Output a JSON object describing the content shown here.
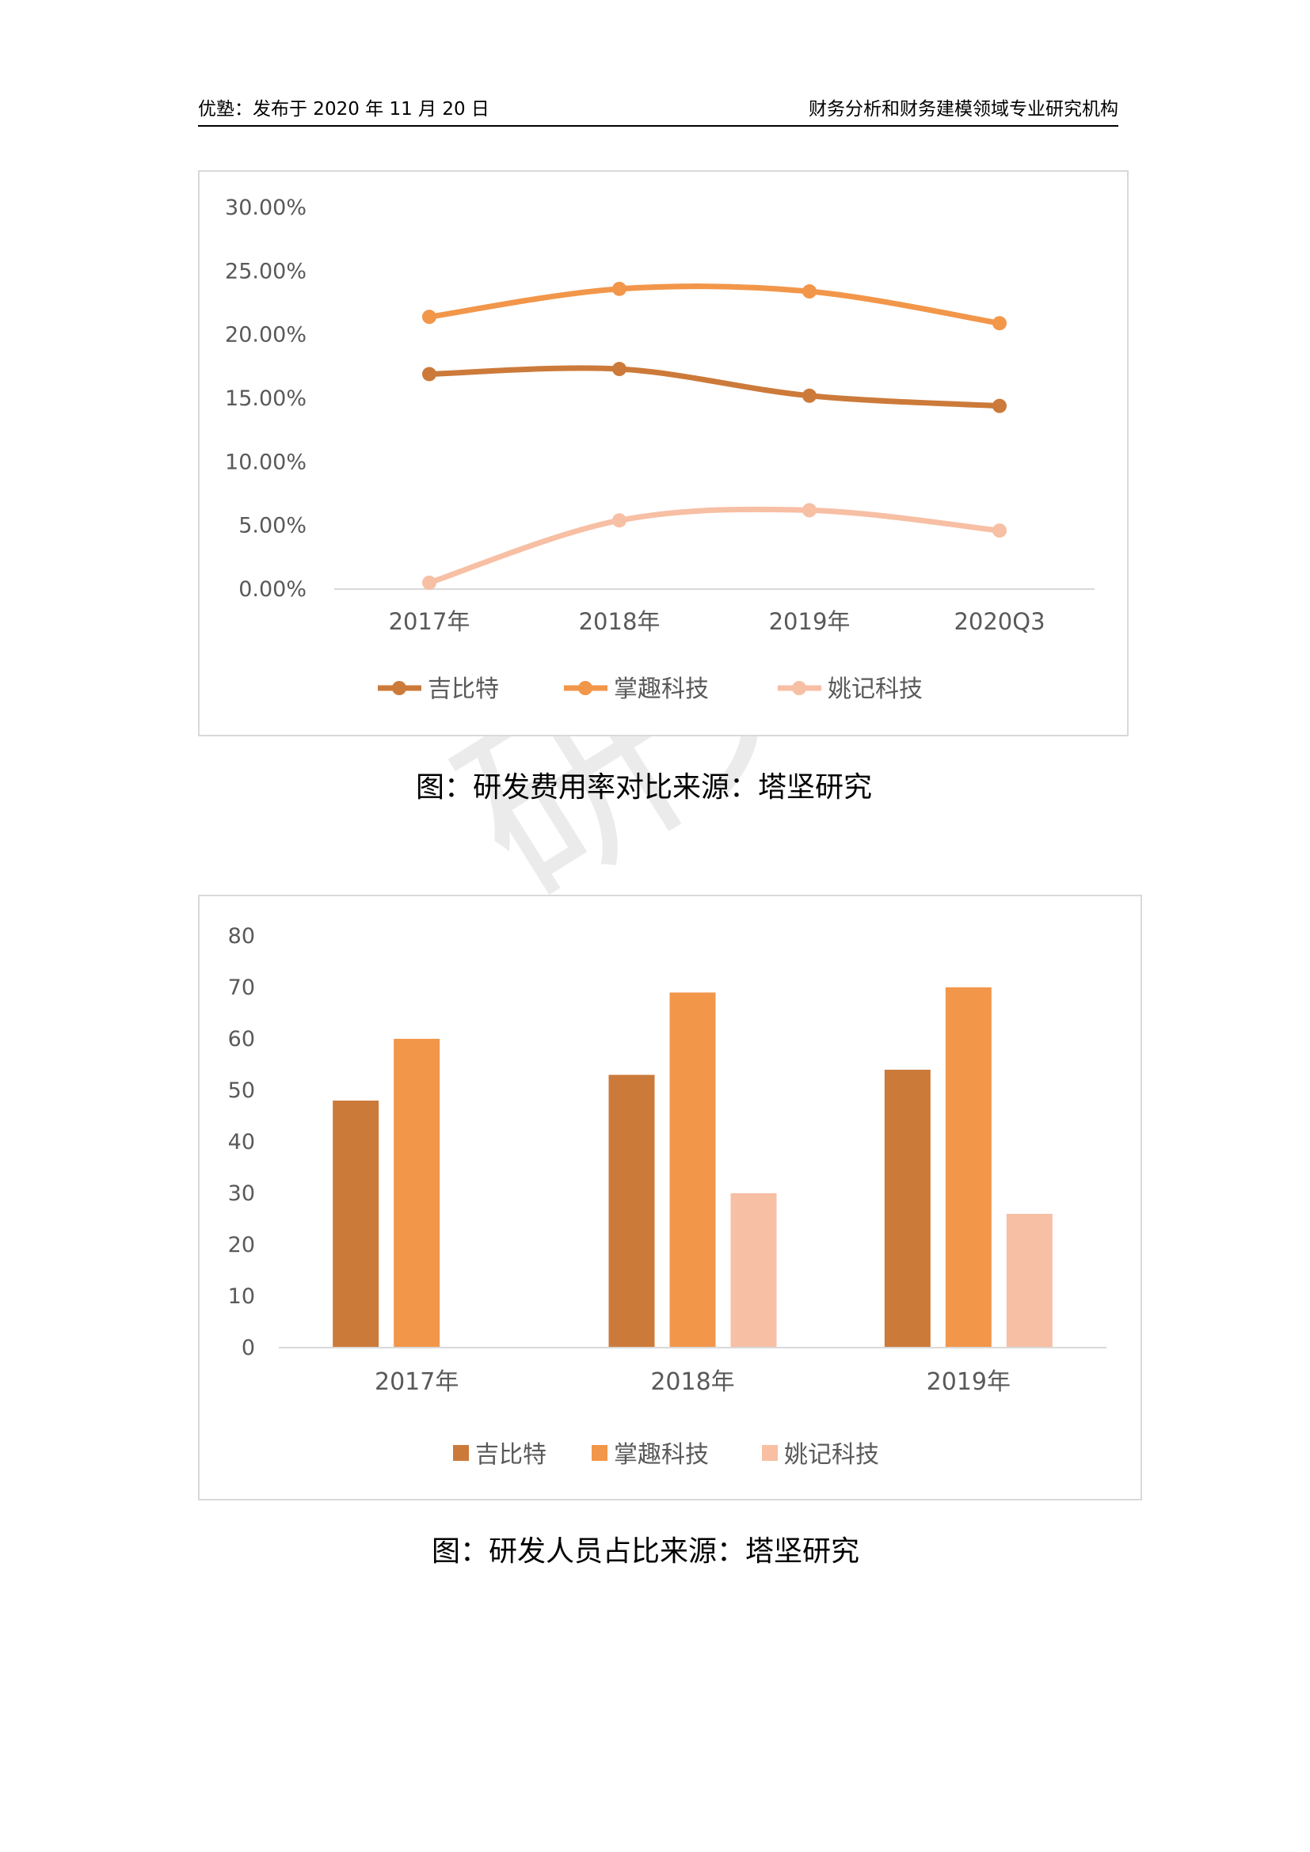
{
  "header": {
    "left": "优塾：发布于 2020 年 11 月 20 日",
    "right": "财务分析和财务建模领域专业研究机构"
  },
  "watermark": "研究",
  "colors": {
    "jibite": "#cc7a3a",
    "zhangqu": "#f2964a",
    "yaoji": "#f7bfa4",
    "axis": "#d9d9d9",
    "text": "#595959"
  },
  "chart_data": [
    {
      "type": "line",
      "title": "",
      "categories": [
        "2017年",
        "2018年",
        "2019年",
        "2020Q3"
      ],
      "series": [
        {
          "name": "吉比特",
          "values": [
            16.9,
            17.3,
            15.2,
            14.4
          ]
        },
        {
          "name": "掌趣科技",
          "values": [
            21.4,
            23.6,
            23.4,
            20.9
          ]
        },
        {
          "name": "姚记科技",
          "values": [
            0.5,
            5.4,
            6.2,
            4.6
          ]
        }
      ],
      "yticks": [
        "0.00%",
        "5.00%",
        "10.00%",
        "15.00%",
        "20.00%",
        "25.00%",
        "30.00%"
      ],
      "ylim": [
        0,
        30
      ],
      "legend": "bottom",
      "caption": "图：研发费用率对比来源：塔坚研究"
    },
    {
      "type": "bar",
      "title": "",
      "categories": [
        "2017年",
        "2018年",
        "2019年"
      ],
      "series": [
        {
          "name": "吉比特",
          "values": [
            48,
            53,
            54
          ]
        },
        {
          "name": "掌趣科技",
          "values": [
            60,
            69,
            70
          ]
        },
        {
          "name": "姚记科技",
          "values": [
            null,
            30,
            26
          ]
        }
      ],
      "yticks": [
        "0",
        "10",
        "20",
        "30",
        "40",
        "50",
        "60",
        "70",
        "80"
      ],
      "ylim": [
        0,
        80
      ],
      "legend": "bottom",
      "caption": "图：研发人员占比来源：塔坚研究"
    }
  ]
}
